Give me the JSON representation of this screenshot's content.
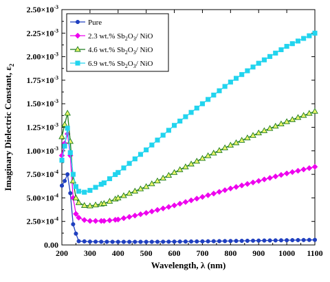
{
  "chart_data": {
    "type": "line",
    "title": "",
    "xlabel": "Wavelength, λ (nm)",
    "ylabel": "Imaginary Dielectric Constant, ε",
    "ylabel_subscript": "2",
    "xlim": [
      200,
      1100
    ],
    "ylim": [
      0,
      0.0025
    ],
    "x_ticks": [
      200,
      300,
      400,
      500,
      600,
      700,
      800,
      900,
      1000,
      1100
    ],
    "y_ticks": [
      {
        "value": 0.0,
        "mantissa": "0.00",
        "exp": ""
      },
      {
        "value": 0.00025,
        "mantissa": "2.50×10",
        "exp": "-4"
      },
      {
        "value": 0.0005,
        "mantissa": "5.00×10",
        "exp": "-4"
      },
      {
        "value": 0.00075,
        "mantissa": "7.50×10",
        "exp": "-4"
      },
      {
        "value": 0.001,
        "mantissa": "1.00×10",
        "exp": "-3"
      },
      {
        "value": 0.00125,
        "mantissa": "1.25×10",
        "exp": "-3"
      },
      {
        "value": 0.0015,
        "mantissa": "1.50×10",
        "exp": "-3"
      },
      {
        "value": 0.00175,
        "mantissa": "1.75×10",
        "exp": "-3"
      },
      {
        "value": 0.002,
        "mantissa": "2.00×10",
        "exp": "-3"
      },
      {
        "value": 0.00225,
        "mantissa": "2.25×10",
        "exp": "-3"
      },
      {
        "value": 0.0025,
        "mantissa": "2.50×10",
        "exp": "-3"
      }
    ],
    "grid": false,
    "legend_position": "top-left",
    "series": [
      {
        "name": "Pure",
        "legend_parts": [
          {
            "t": "Pure",
            "sub": false
          }
        ],
        "color": "#1f3fbf",
        "marker": "circle",
        "x": [
          200,
          210,
          220,
          230,
          240,
          250,
          260,
          280,
          300,
          400,
          500,
          600,
          700,
          800,
          900,
          1000,
          1100
        ],
        "y": [
          0.00063,
          0.00068,
          0.00075,
          0.00055,
          0.00022,
          0.00012,
          4e-05,
          3.8e-05,
          3.5e-05,
          3.3e-05,
          3.3e-05,
          3.5e-05,
          3.8e-05,
          4.2e-05,
          4.6e-05,
          5e-05,
          5.4e-05
        ]
      },
      {
        "name": "2.3 wt.% Sb2O3/ NiO",
        "legend_parts": [
          {
            "t": "2.3 wt.% Sb",
            "sub": false
          },
          {
            "t": "2",
            "sub": true
          },
          {
            "t": "O",
            "sub": false
          },
          {
            "t": "3",
            "sub": true
          },
          {
            "t": "/ NiO",
            "sub": false
          }
        ],
        "color": "#ee00ee",
        "marker": "diamond",
        "x": [
          200,
          210,
          220,
          230,
          240,
          250,
          260,
          280,
          300,
          350,
          400,
          500,
          600,
          700,
          800,
          900,
          1000,
          1100
        ],
        "y": [
          0.00095,
          0.00108,
          0.00118,
          0.00095,
          0.0005,
          0.00033,
          0.00029,
          0.000265,
          0.000255,
          0.000255,
          0.00027,
          0.00034,
          0.00042,
          0.00051,
          0.0006,
          0.00068,
          0.00076,
          0.00083
        ]
      },
      {
        "name": "4.6 wt.% Sb2O3/ NiO",
        "legend_parts": [
          {
            "t": "4.6 wt.% Sb",
            "sub": false
          },
          {
            "t": "2",
            "sub": true
          },
          {
            "t": "O",
            "sub": false
          },
          {
            "t": "3",
            "sub": true
          },
          {
            "t": "/ NiO",
            "sub": false
          }
        ],
        "color": "#1a7a1a",
        "fill": "#eaf56a",
        "marker": "triangle",
        "x": [
          200,
          210,
          220,
          230,
          240,
          250,
          260,
          280,
          300,
          350,
          400,
          500,
          600,
          700,
          800,
          900,
          1000,
          1100
        ],
        "y": [
          0.00115,
          0.00128,
          0.0014,
          0.0011,
          0.00068,
          0.0005,
          0.00045,
          0.00042,
          0.000415,
          0.00044,
          0.0005,
          0.00062,
          0.00077,
          0.00092,
          0.00106,
          0.00119,
          0.00131,
          0.00142
        ]
      },
      {
        "name": "6.9 wt.% Sb2O3/ NiO",
        "legend_parts": [
          {
            "t": "6.9 wt.% Sb",
            "sub": false
          },
          {
            "t": "2",
            "sub": true
          },
          {
            "t": "O",
            "sub": false
          },
          {
            "t": "3",
            "sub": true
          },
          {
            "t": "/ NiO",
            "sub": false
          }
        ],
        "color": "#22d4ee",
        "marker": "square",
        "x": [
          200,
          210,
          220,
          230,
          240,
          250,
          260,
          280,
          300,
          350,
          400,
          500,
          600,
          700,
          800,
          900,
          1000,
          1100
        ],
        "y": [
          0.0009,
          0.00105,
          0.00124,
          0.00098,
          0.00075,
          0.00062,
          0.00057,
          0.00056,
          0.00058,
          0.00066,
          0.00077,
          0.00101,
          0.00127,
          0.0015,
          0.00173,
          0.00193,
          0.00211,
          0.00225
        ]
      }
    ]
  }
}
